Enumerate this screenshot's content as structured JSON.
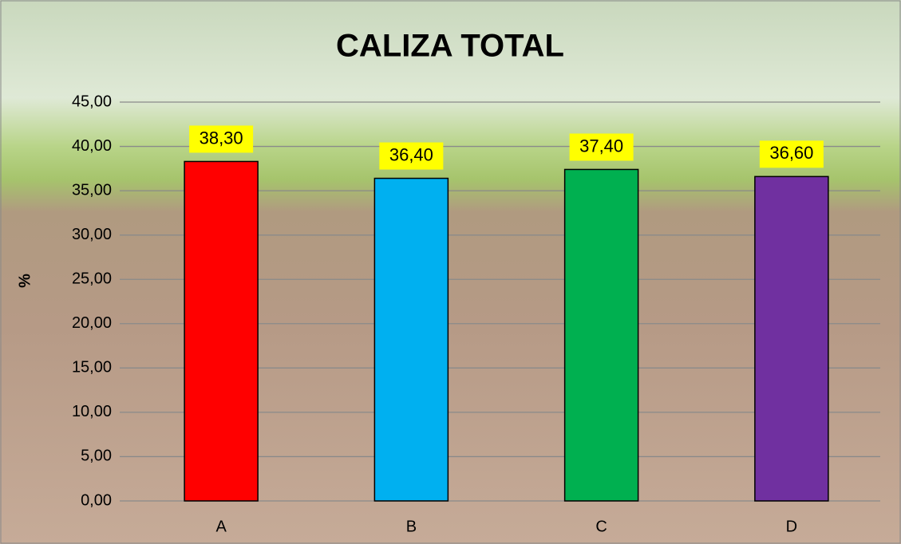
{
  "chart_data": {
    "type": "bar",
    "title": "CALIZA TOTAL",
    "y_label": "%",
    "categories": [
      "A",
      "B",
      "C",
      "D"
    ],
    "values": [
      38.3,
      36.4,
      37.4,
      36.6
    ],
    "value_labels": [
      "38,30",
      "36,40",
      "37,40",
      "36,60"
    ],
    "colors": [
      "#ff0000",
      "#00b0f0",
      "#00b050",
      "#7030a0"
    ],
    "ylim": [
      0,
      45
    ],
    "yticks": [
      {
        "value": 0,
        "label": "0,00"
      },
      {
        "value": 5,
        "label": "5,00"
      },
      {
        "value": 10,
        "label": "10,00"
      },
      {
        "value": 15,
        "label": "15,00"
      },
      {
        "value": 20,
        "label": "20,00"
      },
      {
        "value": 25,
        "label": "25,00"
      },
      {
        "value": 30,
        "label": "30,00"
      },
      {
        "value": 35,
        "label": "35,00"
      },
      {
        "value": 40,
        "label": "40,00"
      },
      {
        "value": 45,
        "label": "45,00"
      }
    ],
    "grid": true
  }
}
